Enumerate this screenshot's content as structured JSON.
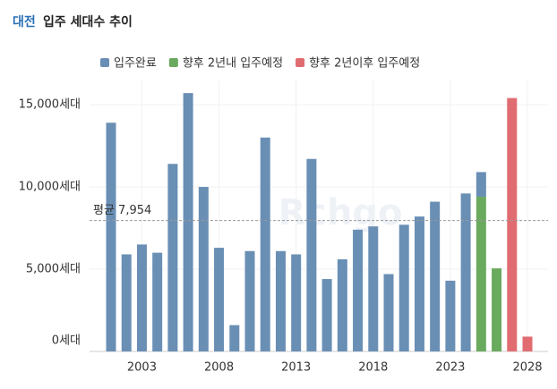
{
  "chart_data": {
    "type": "bar",
    "title_region": "대전",
    "title": "입주 세대수 추이",
    "categories": [
      null,
      null,
      "2003",
      null,
      null,
      null,
      null,
      "2008",
      null,
      null,
      null,
      null,
      "2013",
      null,
      null,
      null,
      null,
      "2018",
      null,
      null,
      null,
      null,
      "2023",
      null,
      null,
      null,
      null,
      "2028"
    ],
    "series": [
      {
        "name": "입주완료",
        "color": "#6a8fb5",
        "values": [
          13900,
          5900,
          6500,
          6000,
          11400,
          15700,
          10000,
          6300,
          1600,
          6100,
          13000,
          6100,
          5900,
          11700,
          4400,
          5600,
          7400,
          7600,
          4700,
          7700,
          8200,
          9100,
          4300,
          9600,
          1500,
          null,
          null,
          null
        ]
      },
      {
        "name": "향후 2년내 입주예정",
        "color": "#6aaa5e",
        "values": [
          null,
          null,
          null,
          null,
          null,
          null,
          null,
          null,
          null,
          null,
          null,
          null,
          null,
          null,
          null,
          null,
          null,
          null,
          null,
          null,
          null,
          null,
          null,
          null,
          9400,
          5050,
          null,
          null
        ]
      },
      {
        "name": "향후 2년이후 입주예정",
        "color": "#e06c72",
        "values": [
          null,
          null,
          null,
          null,
          null,
          null,
          null,
          null,
          null,
          null,
          null,
          null,
          null,
          null,
          null,
          null,
          null,
          null,
          null,
          null,
          null,
          null,
          null,
          null,
          null,
          null,
          15400,
          900
        ]
      }
    ],
    "stacked": true,
    "ylim": [
      0,
      16500
    ],
    "yticks": [
      {
        "value": 0,
        "label": "0세대"
      },
      {
        "value": 5000,
        "label": "5,000세대"
      },
      {
        "value": 10000,
        "label": "10,000세대"
      },
      {
        "value": 15000,
        "label": "15,000세대"
      }
    ],
    "average": {
      "value": 7954,
      "label": "평균 7,954"
    },
    "watermark": "Rchgo",
    "legend": "top"
  }
}
